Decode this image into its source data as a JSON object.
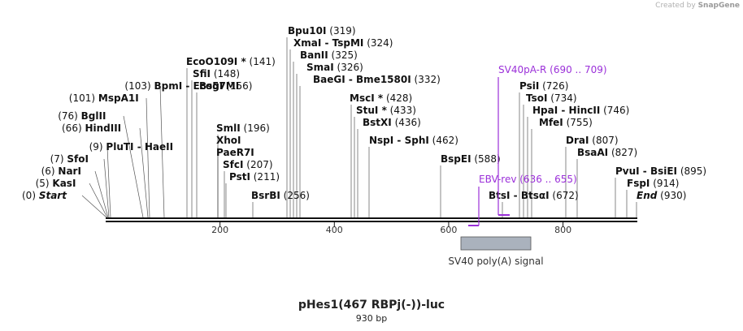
{
  "credit": {
    "prefix": "Created by",
    "brand": "SnapGene"
  },
  "title": "pHes1(467 RBPj(-))-luc",
  "subtitle": "930 bp",
  "colors": {
    "feature": "#9b30d9",
    "black": "#111111",
    "gray_box": "#aab2bd"
  },
  "sequence_length": 930,
  "axis": {
    "ticks": [
      {
        "pos": 200,
        "label": "200"
      },
      {
        "pos": 400,
        "label": "400"
      },
      {
        "pos": 600,
        "label": "600"
      },
      {
        "pos": 800,
        "label": "800"
      }
    ]
  },
  "sites": [
    {
      "name": "Bpu10I",
      "pos": "(319)",
      "site": 319
    },
    {
      "name": "XmaI",
      "suffix": "- TspMI",
      "pos": "(324)",
      "site": 324
    },
    {
      "name": "BanII",
      "pos": "(325)",
      "site": 325
    },
    {
      "name": "SmaI",
      "pos": "(326)",
      "site": 326
    },
    {
      "name": "BaeGI",
      "suffix": "- Bme1580I",
      "pos": "(332)",
      "site": 332
    },
    {
      "name": "EcoO109I *",
      "pos": "(141)",
      "site": 141
    },
    {
      "name": "SfiI",
      "pos": "(148)",
      "site": 148
    },
    {
      "name": "BsgI",
      "pos": "(156)",
      "site": 156
    },
    {
      "name": "BpmI",
      "suffix": "- Eco57MI",
      "pos": "(103)",
      "site": 103,
      "left": true
    },
    {
      "name": "MspA1I",
      "pos": "(101)",
      "site": 101,
      "left": true
    },
    {
      "name": "BglII",
      "pos": "(76)",
      "site": 76,
      "left": true
    },
    {
      "name": "HindIII",
      "pos": "(66)",
      "site": 66,
      "left": true
    },
    {
      "name": "PluTI",
      "suffix": "- HaeII",
      "pos": "(9)",
      "site": 9,
      "left": true
    },
    {
      "name": "SfoI",
      "pos": "(7)",
      "site": 7,
      "left": true
    },
    {
      "name": "NarI",
      "pos": "(6)",
      "site": 6,
      "left": true
    },
    {
      "name": "KasI",
      "pos": "(5)",
      "site": 5,
      "left": true
    },
    {
      "name": "Start",
      "pos": "(0)",
      "site": 0,
      "left": true,
      "italic": true
    },
    {
      "name": "SmlI",
      "pos": "(196)",
      "site": 196
    },
    {
      "name": "XhoI",
      "pos": "",
      "site": 196
    },
    {
      "name": "PaeR7I",
      "pos": "",
      "site": 196
    },
    {
      "name": "SfcI",
      "pos": "(207)",
      "site": 207
    },
    {
      "name": "PstI",
      "pos": "(211)",
      "site": 211
    },
    {
      "name": "BsrBI",
      "pos": "(256)",
      "site": 256
    },
    {
      "name": "MscI *",
      "pos": "(428)",
      "site": 428
    },
    {
      "name": "StuI *",
      "pos": "(433)",
      "site": 433
    },
    {
      "name": "BstXI",
      "pos": "(436)",
      "site": 436
    },
    {
      "name": "NspI",
      "suffix": "- SphI",
      "pos": "(462)",
      "site": 462
    },
    {
      "name": "BspEI",
      "pos": "(588)",
      "site": 588
    },
    {
      "name": "PsiI",
      "pos": "(726)",
      "site": 726
    },
    {
      "name": "TsoI",
      "pos": "(734)",
      "site": 734
    },
    {
      "name": "HpaI",
      "suffix": "- HincII",
      "pos": "(746)",
      "site": 746
    },
    {
      "name": "MfeI",
      "pos": "(755)",
      "site": 755
    },
    {
      "name": "BtsI",
      "suffix": "- BtsαI",
      "pos": "(672)",
      "site": 672
    },
    {
      "name": "DraI",
      "pos": "(807)",
      "site": 807
    },
    {
      "name": "BsaAI",
      "pos": "(827)",
      "site": 827
    },
    {
      "name": "PvuI",
      "suffix": "- BsiEI",
      "pos": "(895)",
      "site": 895
    },
    {
      "name": "FspI",
      "pos": "(914)",
      "site": 914
    },
    {
      "name": "End",
      "pos": "(930)",
      "site": 930,
      "italic": true
    }
  ],
  "primers": [
    {
      "name": "SV40pA-R",
      "range": "(690 .. 709)",
      "start": 690,
      "end": 709
    },
    {
      "name": "EBV-rev",
      "range": "(636 .. 655)",
      "start": 636,
      "end": 655
    }
  ],
  "features": [
    {
      "name": "SV40 poly(A) signal",
      "start": 620,
      "end": 742
    }
  ]
}
